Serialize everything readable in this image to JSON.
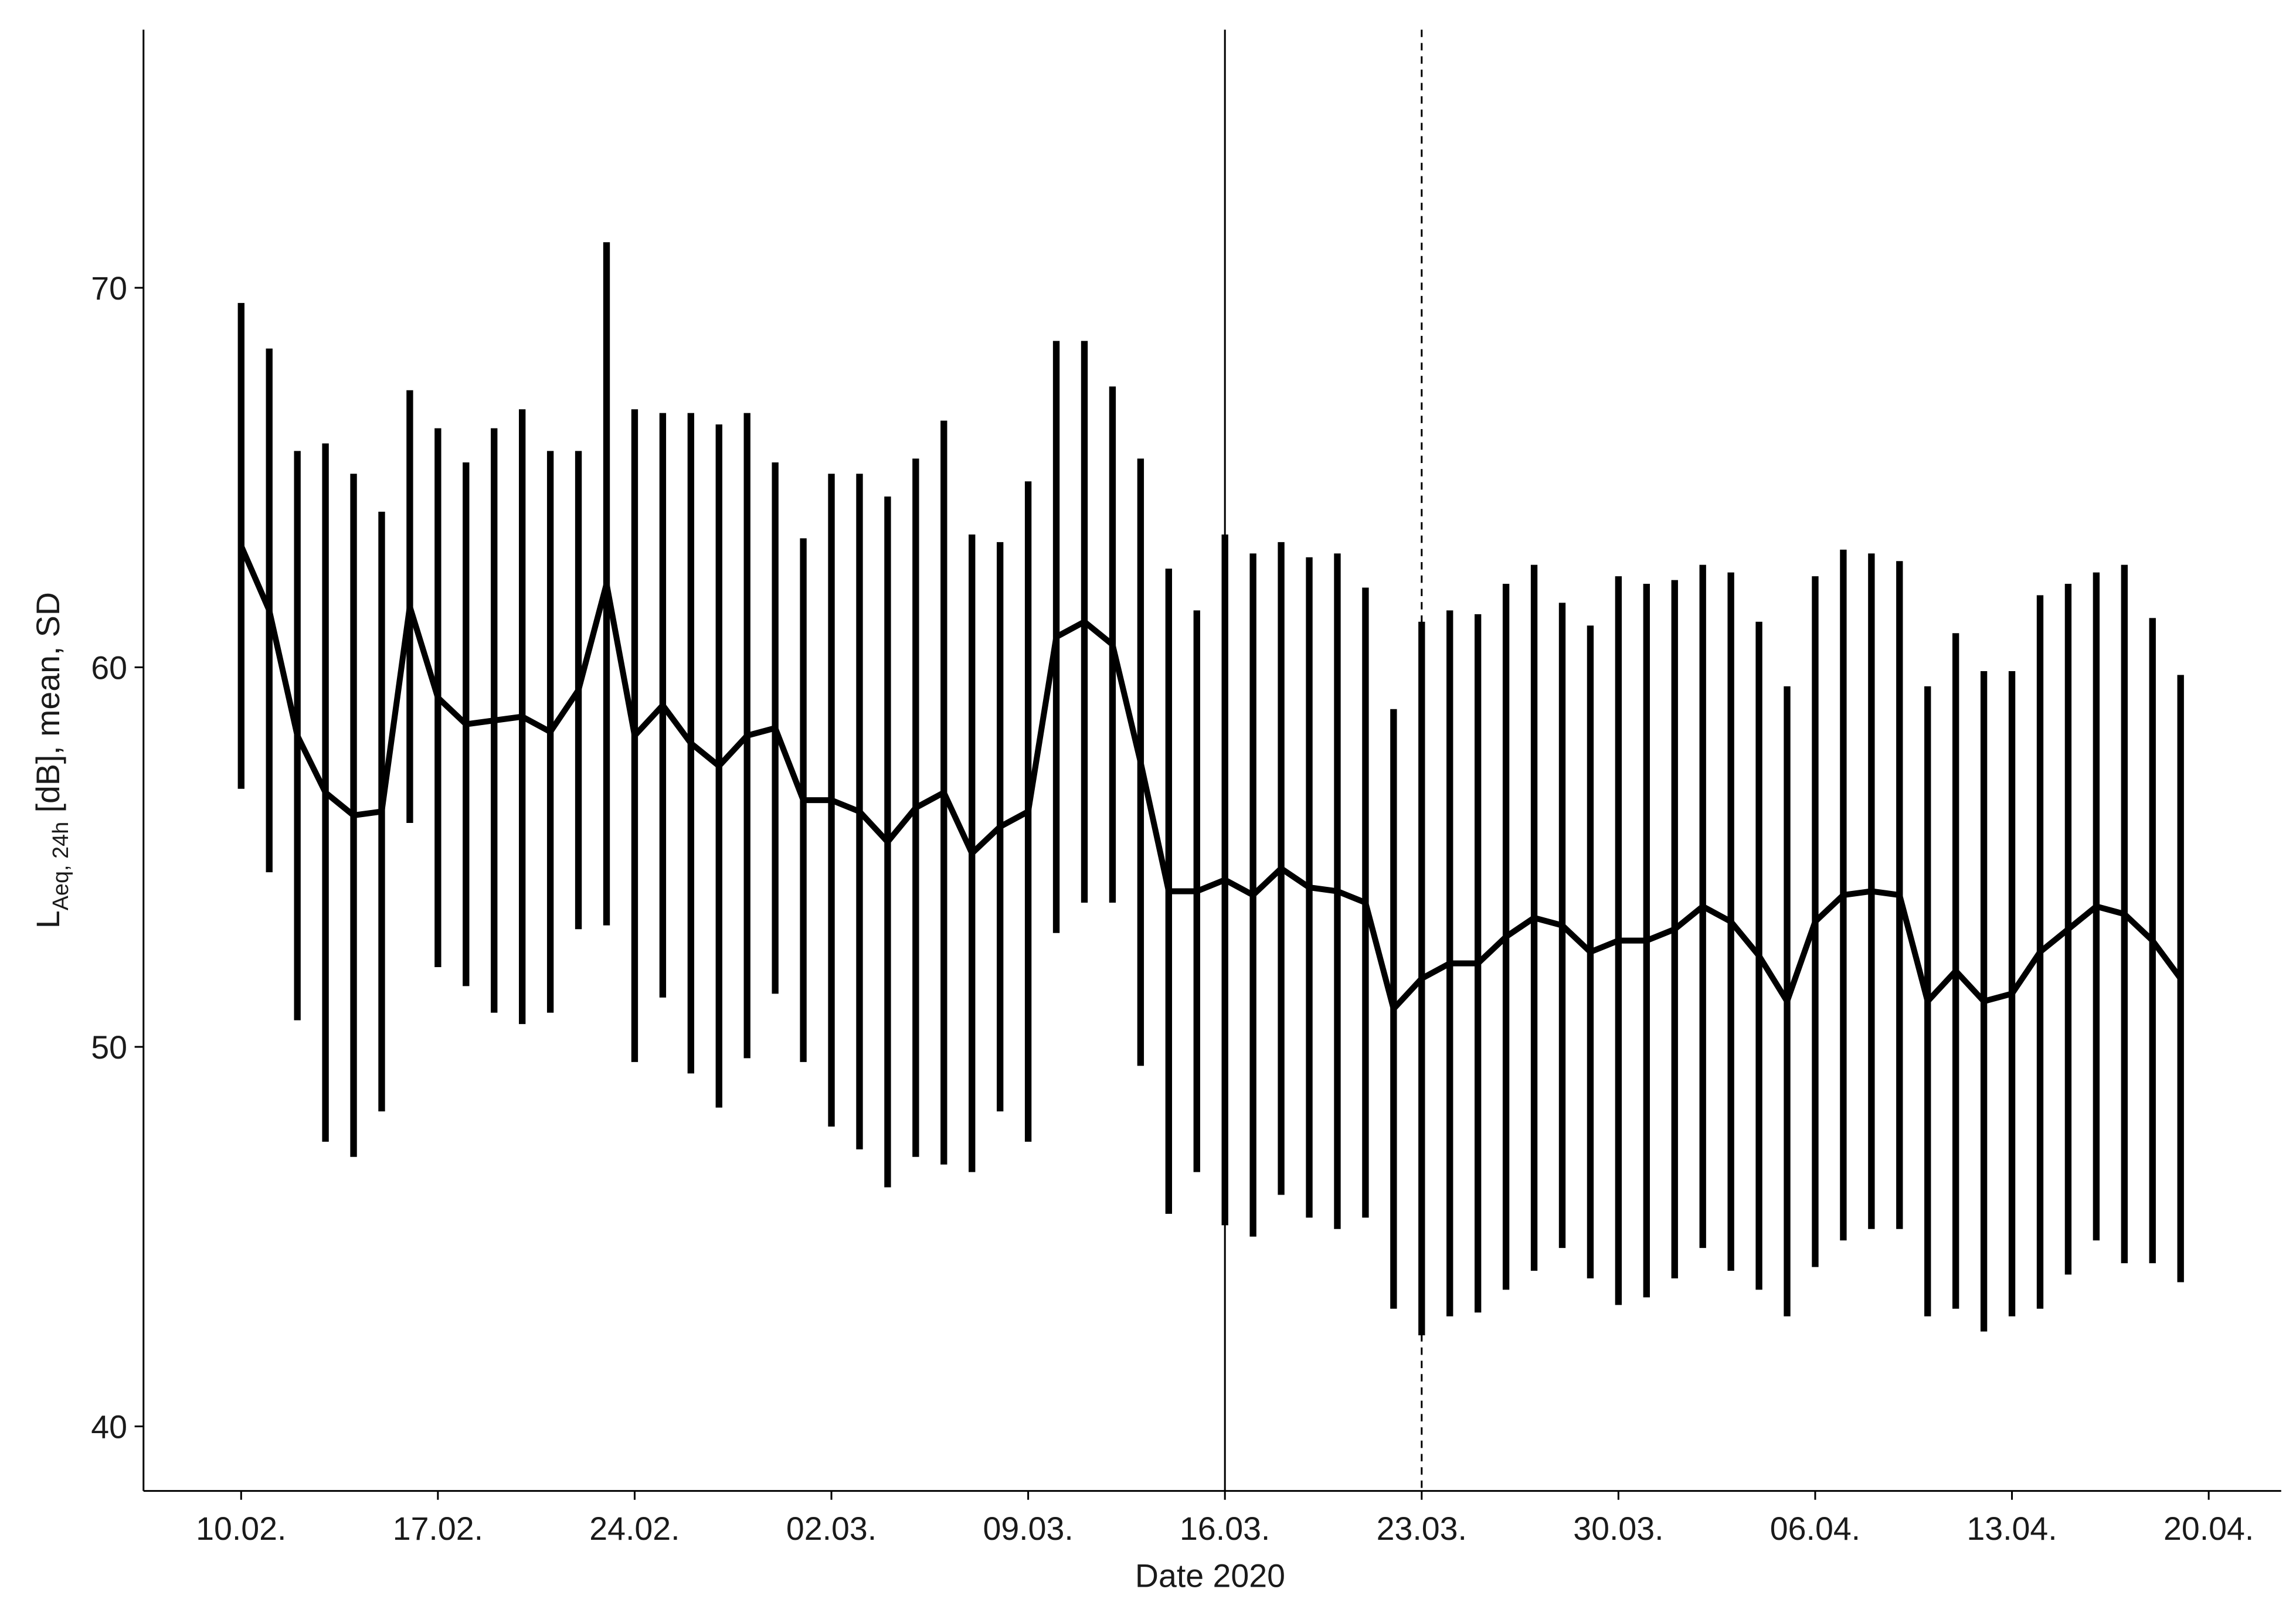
{
  "chart_data": {
    "type": "line",
    "x_label": "Date 2020",
    "y_label": {
      "main": "L",
      "sub": "Aeq, 24h",
      "rest": " [dB], mean, SD"
    },
    "categories": [
      "10.02.",
      null,
      null,
      null,
      null,
      null,
      null,
      "17.02.",
      null,
      null,
      null,
      null,
      null,
      null,
      "24.02.",
      null,
      null,
      null,
      null,
      null,
      null,
      "02.03.",
      null,
      null,
      null,
      null,
      null,
      null,
      "09.03.",
      null,
      null,
      null,
      null,
      null,
      null,
      "16.03.",
      null,
      null,
      null,
      null,
      null,
      null,
      "23.03.",
      null,
      null,
      null,
      null,
      null,
      null,
      "30.03.",
      null,
      null,
      null,
      null,
      null,
      null,
      "06.04.",
      null,
      null,
      null,
      null,
      null,
      null,
      "13.04.",
      null,
      null,
      null,
      null,
      null,
      null,
      "20.04."
    ],
    "series": [
      {
        "color": "#000000",
        "values": [
          63.2,
          61.5,
          58.2,
          56.7,
          56.1,
          56.2,
          61.6,
          59.2,
          58.5,
          58.6,
          58.7,
          58.3,
          59.4,
          62.2,
          58.2,
          59.0,
          58.0,
          57.4,
          58.2,
          58.4,
          56.5,
          56.5,
          56.2,
          55.4,
          56.3,
          56.7,
          55.1,
          55.8,
          56.2,
          60.8,
          61.2,
          60.6,
          57.5,
          54.1,
          54.1,
          54.4,
          54.0,
          54.7,
          54.2,
          54.1,
          53.8,
          51.0,
          51.8,
          52.2,
          52.2,
          52.9,
          53.4,
          53.2,
          52.5,
          52.8,
          52.8,
          53.1,
          53.7,
          53.3,
          52.4,
          51.2,
          53.3,
          54.0,
          54.1,
          54.0,
          51.2,
          52.0,
          51.2,
          51.4,
          52.5,
          53.1,
          53.7,
          53.5,
          52.8,
          51.8,
          null
        ],
        "sd": [
          6.4,
          6.9,
          7.5,
          9.2,
          9.0,
          7.9,
          5.7,
          7.1,
          6.9,
          7.7,
          8.1,
          7.4,
          6.3,
          9.0,
          8.6,
          7.7,
          8.7,
          9.0,
          8.5,
          7.0,
          6.9,
          8.6,
          8.9,
          9.1,
          9.2,
          9.8,
          8.4,
          7.5,
          8.7,
          7.8,
          7.4,
          6.8,
          8.0,
          8.5,
          7.4,
          9.1,
          9.0,
          8.6,
          8.7,
          8.9,
          8.3,
          7.9,
          9.4,
          9.3,
          9.2,
          9.3,
          9.3,
          8.5,
          8.6,
          9.6,
          9.4,
          9.2,
          9.0,
          9.2,
          8.8,
          8.3,
          9.1,
          9.1,
          8.9,
          8.8,
          8.3,
          8.9,
          8.7,
          8.5,
          9.4,
          9.1,
          8.8,
          9.2,
          8.5,
          8.0,
          null
        ]
      }
    ],
    "vlines": [
      {
        "at": "16.03.",
        "style": "solid"
      },
      {
        "at": "23.03.",
        "style": "dashed"
      }
    ],
    "ylim": [
      38.3,
      76.8
    ],
    "yticks": [
      40,
      50,
      60,
      70
    ],
    "grid": false
  }
}
